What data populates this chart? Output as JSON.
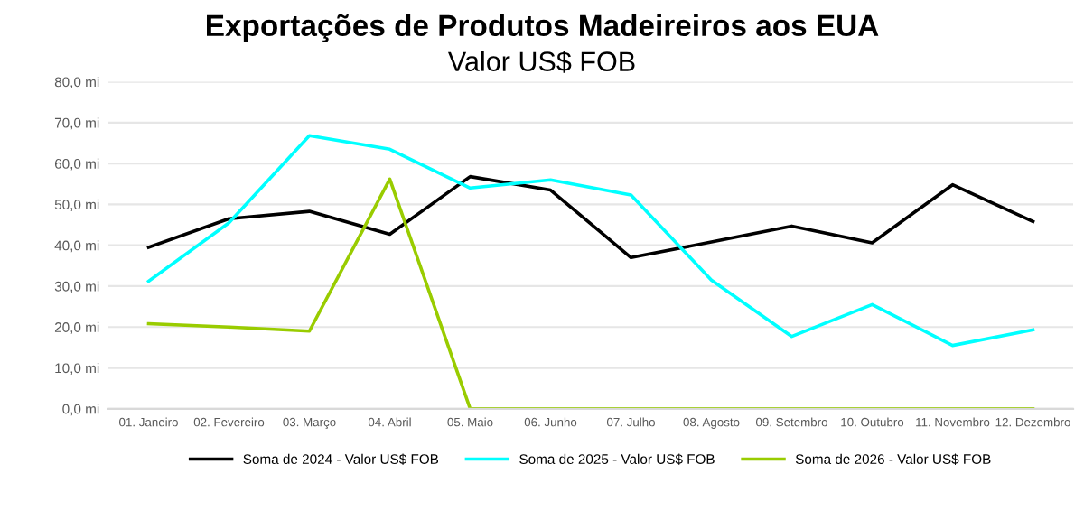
{
  "chart_data": {
    "type": "line",
    "title": "Exportações de Produtos Madeireiros aos EUA",
    "subtitle": "Valor US$ FOB",
    "categories": [
      "01. Janeiro",
      "02. Fevereiro",
      "03. Março",
      "04. Abril",
      "05. Maio",
      "06. Junho",
      "07. Julho",
      "08. Agosto",
      "09. Setembro",
      "10. Outubro",
      "11. Novembro",
      "12. Dezembro"
    ],
    "series": [
      {
        "name": "Soma de 2024 - Valor US$ FOB",
        "color": "#000000",
        "values": [
          39.5,
          46.5,
          48.3,
          42.7,
          56.8,
          53.5,
          37.0,
          40.8,
          44.7,
          40.6,
          54.8,
          45.8
        ]
      },
      {
        "name": "Soma de 2025 - Valor US$ FOB",
        "color": "#00ffff",
        "values": [
          31.2,
          45.5,
          66.8,
          63.5,
          54.0,
          56.0,
          52.3,
          31.5,
          17.7,
          25.5,
          15.5,
          19.3
        ]
      },
      {
        "name": "Soma de 2026 - Valor US$ FOB",
        "color": "#99cc00",
        "values": [
          20.8,
          20.0,
          19.0,
          56.2,
          0,
          0,
          0,
          0,
          0,
          0,
          0,
          0
        ]
      }
    ],
    "ylim": [
      0,
      80
    ],
    "yticks": [
      {
        "value": 0,
        "label": "0,0 mi"
      },
      {
        "value": 10,
        "label": "10,0 mi"
      },
      {
        "value": 20,
        "label": "20,0 mi"
      },
      {
        "value": 30,
        "label": "30,0 mi"
      },
      {
        "value": 40,
        "label": "40,0 mi"
      },
      {
        "value": 50,
        "label": "50,0 mi"
      },
      {
        "value": 60,
        "label": "60,0 mi"
      },
      {
        "value": 70,
        "label": "70,0 mi"
      },
      {
        "value": 80,
        "label": "80,0 mi"
      }
    ],
    "grid": "y",
    "legend": "bottom",
    "marker": "none",
    "line_style": "solid"
  }
}
